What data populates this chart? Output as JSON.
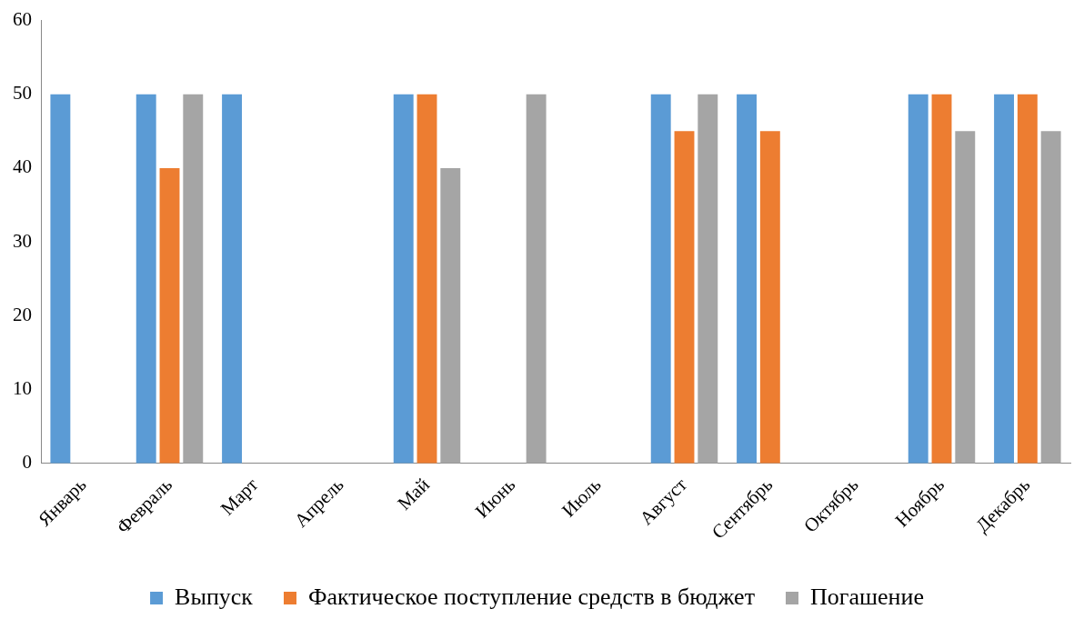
{
  "chart_data": {
    "type": "bar",
    "categories": [
      "Январь",
      "Февраль",
      "Март",
      "Апрель",
      "Май",
      "Июнь",
      "Июль",
      "Август",
      "Сентябрь",
      "Октябрь",
      "Ноябрь",
      "Декабрь"
    ],
    "series": [
      {
        "name": "Выпуск",
        "color": "#5b9bd5",
        "values": [
          50,
          50,
          50,
          null,
          50,
          null,
          null,
          50,
          50,
          null,
          50,
          50
        ]
      },
      {
        "name": "Фактическое поступление средств в бюджет",
        "color": "#ed7d31",
        "values": [
          null,
          40,
          null,
          null,
          50,
          null,
          null,
          45,
          45,
          null,
          50,
          50
        ]
      },
      {
        "name": "Погашение",
        "color": "#a5a5a5",
        "values": [
          null,
          50,
          null,
          null,
          40,
          50,
          null,
          50,
          null,
          null,
          45,
          45
        ]
      }
    ],
    "ylim": [
      0,
      60
    ],
    "yticks": [
      0,
      10,
      20,
      30,
      40,
      50,
      60
    ],
    "grid": false,
    "legend": "bottom"
  }
}
